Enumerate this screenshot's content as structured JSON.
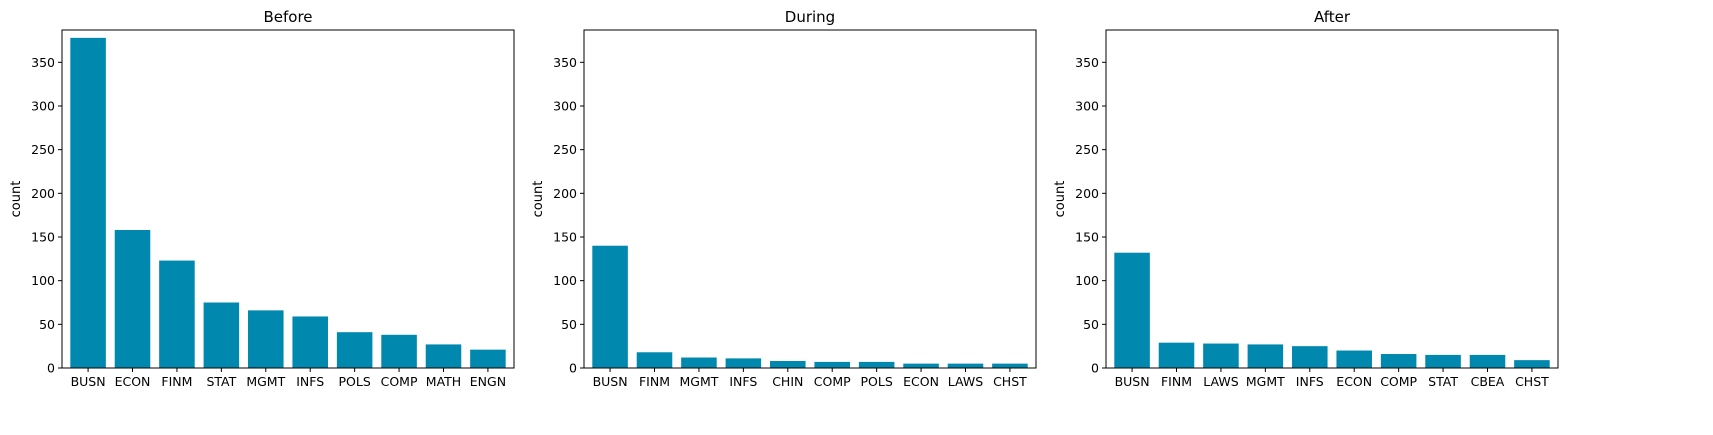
{
  "bar_color": "#0088ae",
  "chart_data": [
    {
      "type": "bar",
      "title": "Before",
      "xlabel": "",
      "ylabel": "count",
      "ylim": [
        0,
        387
      ],
      "yticks": [
        0,
        50,
        100,
        150,
        200,
        250,
        300,
        350
      ],
      "grid": false,
      "categories": [
        "BUSN",
        "ECON",
        "FINM",
        "STAT",
        "MGMT",
        "INFS",
        "POLS",
        "COMP",
        "MATH",
        "ENGN"
      ],
      "values": [
        378,
        158,
        123,
        75,
        66,
        59,
        41,
        38,
        27,
        21
      ]
    },
    {
      "type": "bar",
      "title": "During",
      "xlabel": "",
      "ylabel": "count",
      "ylim": [
        0,
        387
      ],
      "yticks": [
        0,
        50,
        100,
        150,
        200,
        250,
        300,
        350
      ],
      "grid": false,
      "categories": [
        "BUSN",
        "FINM",
        "MGMT",
        "INFS",
        "CHIN",
        "COMP",
        "POLS",
        "ECON",
        "LAWS",
        "CHST"
      ],
      "values": [
        140,
        18,
        12,
        11,
        8,
        7,
        7,
        5,
        5,
        5
      ]
    },
    {
      "type": "bar",
      "title": "After",
      "xlabel": "",
      "ylabel": "count",
      "ylim": [
        0,
        387
      ],
      "yticks": [
        0,
        50,
        100,
        150,
        200,
        250,
        300,
        350
      ],
      "grid": false,
      "categories": [
        "BUSN",
        "FINM",
        "LAWS",
        "MGMT",
        "INFS",
        "ECON",
        "COMP",
        "STAT",
        "CBEA",
        "CHST"
      ],
      "values": [
        132,
        29,
        28,
        27,
        25,
        20,
        16,
        15,
        15,
        9
      ]
    }
  ]
}
